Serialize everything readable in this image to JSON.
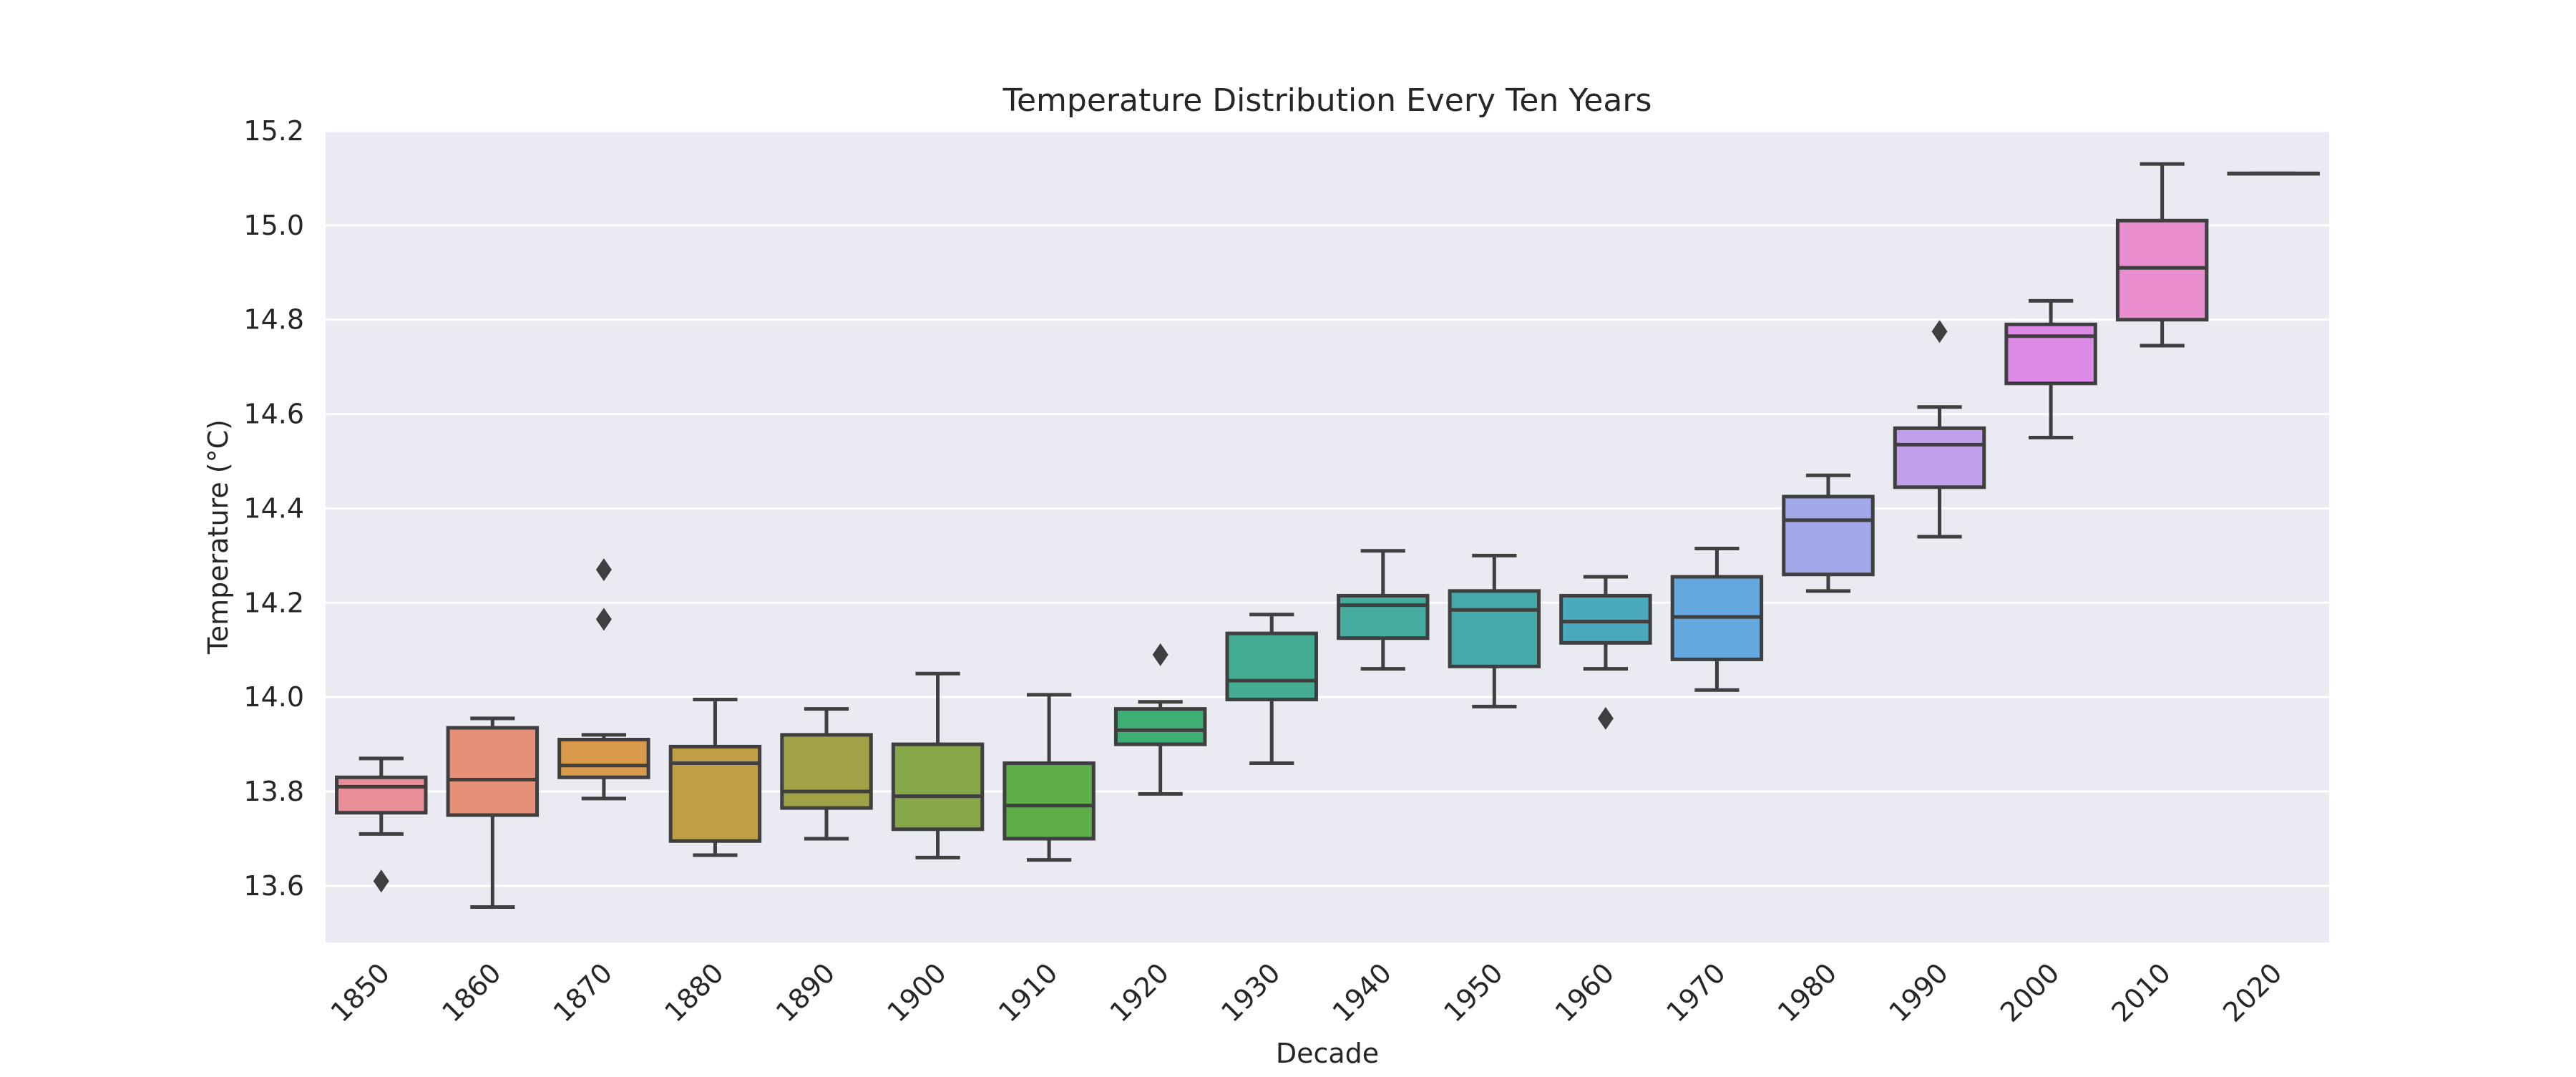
{
  "chart_data": {
    "type": "box",
    "title": "Temperature Distribution Every Ten Years",
    "xlabel": "Decade",
    "ylabel": "Temperature (°C)",
    "ylim": [
      13.48,
      15.2
    ],
    "yticks": [
      13.6,
      13.8,
      14.0,
      14.2,
      14.4,
      14.6,
      14.8,
      15.0,
      15.2
    ],
    "yticklabels": [
      "13.6",
      "13.8",
      "14.0",
      "14.2",
      "14.4",
      "14.6",
      "14.8",
      "15.0",
      "15.2"
    ],
    "grid": true,
    "categories": [
      "1850",
      "1860",
      "1870",
      "1880",
      "1890",
      "1900",
      "1910",
      "1920",
      "1930",
      "1940",
      "1950",
      "1960",
      "1970",
      "1980",
      "1990",
      "2000",
      "2010",
      "2020"
    ],
    "boxes": [
      {
        "category": "1850",
        "whisker_low": 13.71,
        "q1": 13.755,
        "median": 13.81,
        "q3": 13.83,
        "whisker_high": 13.87,
        "outliers": [
          13.61
        ],
        "color": "#E98F97"
      },
      {
        "category": "1860",
        "whisker_low": 13.555,
        "q1": 13.75,
        "median": 13.825,
        "q3": 13.935,
        "whisker_high": 13.955,
        "outliers": [],
        "color": "#E69078"
      },
      {
        "category": "1870",
        "whisker_low": 13.785,
        "q1": 13.83,
        "median": 13.855,
        "q3": 13.91,
        "whisker_high": 13.92,
        "outliers": [
          14.165,
          14.27
        ],
        "color": "#D99A4E"
      },
      {
        "category": "1880",
        "whisker_low": 13.665,
        "q1": 13.695,
        "median": 13.86,
        "q3": 13.895,
        "whisker_high": 13.995,
        "outliers": [],
        "color": "#BF9E47"
      },
      {
        "category": "1890",
        "whisker_low": 13.7,
        "q1": 13.765,
        "median": 13.8,
        "q3": 13.92,
        "whisker_high": 13.975,
        "outliers": [],
        "color": "#A1A247"
      },
      {
        "category": "1900",
        "whisker_low": 13.66,
        "q1": 13.72,
        "median": 13.79,
        "q3": 13.9,
        "whisker_high": 14.05,
        "outliers": [],
        "color": "#86A748"
      },
      {
        "category": "1910",
        "whisker_low": 13.655,
        "q1": 13.7,
        "median": 13.77,
        "q3": 13.86,
        "whisker_high": 14.005,
        "outliers": [],
        "color": "#5DAE48"
      },
      {
        "category": "1920",
        "whisker_low": 13.795,
        "q1": 13.9,
        "median": 13.93,
        "q3": 13.975,
        "whisker_high": 13.99,
        "outliers": [
          14.09
        ],
        "color": "#3FAE72"
      },
      {
        "category": "1930",
        "whisker_low": 13.86,
        "q1": 13.995,
        "median": 14.035,
        "q3": 14.135,
        "whisker_high": 14.175,
        "outliers": [],
        "color": "#44AC92"
      },
      {
        "category": "1940",
        "whisker_low": 14.06,
        "q1": 14.125,
        "median": 14.195,
        "q3": 14.215,
        "whisker_high": 14.31,
        "outliers": [],
        "color": "#45AB9F"
      },
      {
        "category": "1950",
        "whisker_low": 13.98,
        "q1": 14.065,
        "median": 14.185,
        "q3": 14.225,
        "whisker_high": 14.3,
        "outliers": [],
        "color": "#46AAAC"
      },
      {
        "category": "1960",
        "whisker_low": 14.06,
        "q1": 14.115,
        "median": 14.16,
        "q3": 14.215,
        "whisker_high": 14.255,
        "outliers": [
          13.955
        ],
        "color": "#49A9BE"
      },
      {
        "category": "1970",
        "whisker_low": 14.015,
        "q1": 14.08,
        "median": 14.17,
        "q3": 14.255,
        "whisker_high": 14.315,
        "outliers": [],
        "color": "#63A8DE"
      },
      {
        "category": "1980",
        "whisker_low": 14.225,
        "q1": 14.26,
        "median": 14.375,
        "q3": 14.425,
        "whisker_high": 14.47,
        "outliers": [],
        "color": "#A1A9EA"
      },
      {
        "category": "1990",
        "whisker_low": 14.34,
        "q1": 14.445,
        "median": 14.535,
        "q3": 14.57,
        "whisker_high": 14.615,
        "outliers": [
          14.775
        ],
        "color": "#C29FEA"
      },
      {
        "category": "2000",
        "whisker_low": 14.55,
        "q1": 14.665,
        "median": 14.765,
        "q3": 14.79,
        "whisker_high": 14.84,
        "outliers": [],
        "color": "#DD8BE6"
      },
      {
        "category": "2010",
        "whisker_low": 14.745,
        "q1": 14.8,
        "median": 14.91,
        "q3": 15.01,
        "whisker_high": 15.13,
        "outliers": [],
        "color": "#E88DCD"
      },
      {
        "category": "2020",
        "whisker_low": 15.11,
        "q1": 15.11,
        "median": 15.11,
        "q3": 15.11,
        "whisker_high": 15.11,
        "outliers": [],
        "color": "#E98FB4"
      }
    ],
    "style": {
      "background": "#EAEAF2",
      "gridline_color": "#FFFFFF",
      "line_color": "#3F3F3F"
    }
  }
}
